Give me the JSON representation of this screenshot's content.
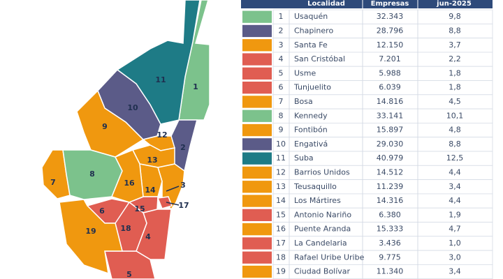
{
  "header": {
    "columns": [
      "Localidad",
      "Empresas",
      "jun-2025"
    ]
  },
  "table": {
    "rows": [
      {
        "number": "1",
        "name": "Usaquén",
        "companies": "32.343",
        "share": "9,8",
        "color": "#7cc28c"
      },
      {
        "number": "2",
        "name": "Chapinero",
        "companies": "28.796",
        "share": "8,8",
        "color": "#5b5b88"
      },
      {
        "number": "3",
        "name": "Santa Fe",
        "companies": "12.150",
        "share": "3,7",
        "color": "#f0980f"
      },
      {
        "number": "4",
        "name": "San Cristóbal",
        "companies": "7.201",
        "share": "2,2",
        "color": "#e05d52"
      },
      {
        "number": "5",
        "name": "Usme",
        "companies": "5.988",
        "share": "1,8",
        "color": "#e05d52"
      },
      {
        "number": "6",
        "name": "Tunjuelito",
        "companies": "6.039",
        "share": "1,8",
        "color": "#e05d52"
      },
      {
        "number": "7",
        "name": "Bosa",
        "companies": "14.816",
        "share": "4,5",
        "color": "#f0980f"
      },
      {
        "number": "8",
        "name": "Kennedy",
        "companies": "33.141",
        "share": "10,1",
        "color": "#7cc28c"
      },
      {
        "number": "9",
        "name": "Fontibón",
        "companies": "15.897",
        "share": "4,8",
        "color": "#f0980f"
      },
      {
        "number": "10",
        "name": "Engativá",
        "companies": "29.030",
        "share": "8,8",
        "color": "#5b5b88"
      },
      {
        "number": "11",
        "name": "Suba",
        "companies": "40.979",
        "share": "12,5",
        "color": "#1e7b86"
      },
      {
        "number": "12",
        "name": "Barrios Unidos",
        "companies": "14.512",
        "share": "4,4",
        "color": "#f0980f"
      },
      {
        "number": "13",
        "name": "Teusaquillo",
        "companies": "11.239",
        "share": "3,4",
        "color": "#f0980f"
      },
      {
        "number": "14",
        "name": "Los Mártires",
        "companies": "14.316",
        "share": "4,4",
        "color": "#f0980f"
      },
      {
        "number": "15",
        "name": "Antonio Nariño",
        "companies": "6.380",
        "share": "1,9",
        "color": "#e05d52"
      },
      {
        "number": "16",
        "name": "Puente Aranda",
        "companies": "15.333",
        "share": "4,7",
        "color": "#f0980f"
      },
      {
        "number": "17",
        "name": "La Candelaria",
        "companies": "3.436",
        "share": "1,0",
        "color": "#e05d52"
      },
      {
        "number": "18",
        "name": "Rafael Uribe Uribe",
        "companies": "9.775",
        "share": "3,0",
        "color": "#e05d52"
      },
      {
        "number": "19",
        "name": "Ciudad Bolívar",
        "companies": "11.340",
        "share": "3,4",
        "color": "#f0980f"
      }
    ]
  }
}
